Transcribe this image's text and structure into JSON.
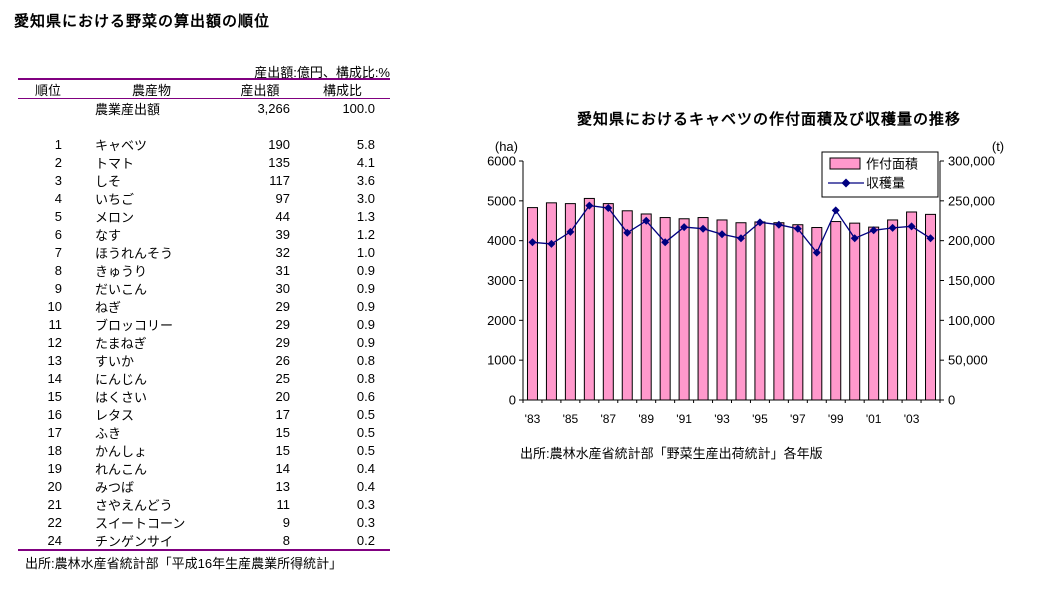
{
  "colors": {
    "rule": "#800080",
    "bar_fill": "#FF99CC",
    "line": "#000080",
    "axis": "#000000"
  },
  "table": {
    "title": "愛知県における野菜の算出額の順位",
    "units_note": "産出額:億円、構成比:%",
    "headers": [
      "順位",
      "農産物",
      "産出額",
      "構成比"
    ],
    "summary": {
      "rank": "",
      "name": "農業産出額",
      "output": "3,266",
      "share": "100.0"
    },
    "rows": [
      [
        "1",
        "キャベツ",
        "190",
        "5.8"
      ],
      [
        "2",
        "トマト",
        "135",
        "4.1"
      ],
      [
        "3",
        "しそ",
        "117",
        "3.6"
      ],
      [
        "4",
        "いちご",
        "97",
        "3.0"
      ],
      [
        "5",
        "メロン",
        "44",
        "1.3"
      ],
      [
        "6",
        "なす",
        "39",
        "1.2"
      ],
      [
        "7",
        "ほうれんそう",
        "32",
        "1.0"
      ],
      [
        "8",
        "きゅうり",
        "31",
        "0.9"
      ],
      [
        "9",
        "だいこん",
        "30",
        "0.9"
      ],
      [
        "10",
        "ねぎ",
        "29",
        "0.9"
      ],
      [
        "11",
        "ブロッコリー",
        "29",
        "0.9"
      ],
      [
        "12",
        "たまねぎ",
        "29",
        "0.9"
      ],
      [
        "13",
        "すいか",
        "26",
        "0.8"
      ],
      [
        "14",
        "にんじん",
        "25",
        "0.8"
      ],
      [
        "15",
        "はくさい",
        "20",
        "0.6"
      ],
      [
        "16",
        "レタス",
        "17",
        "0.5"
      ],
      [
        "17",
        "ふき",
        "15",
        "0.5"
      ],
      [
        "18",
        "かんしょ",
        "15",
        "0.5"
      ],
      [
        "19",
        "れんこん",
        "14",
        "0.4"
      ],
      [
        "20",
        "みつば",
        "13",
        "0.4"
      ],
      [
        "21",
        "さやえんどう",
        "11",
        "0.3"
      ],
      [
        "22",
        "スイートコーン",
        "9",
        "0.3"
      ],
      [
        "24",
        "チンゲンサイ",
        "8",
        "0.2"
      ]
    ],
    "source": "出所:農林水産省統計部「平成16年生産農業所得統計」"
  },
  "chart_data": {
    "type": "bar",
    "title": "愛知県におけるキャベツの作付面積及び収穫量の推移",
    "x": [
      1983,
      1984,
      1985,
      1986,
      1987,
      1988,
      1989,
      1990,
      1991,
      1992,
      1993,
      1994,
      1995,
      1996,
      1997,
      1998,
      1999,
      2000,
      2001,
      2002,
      2003,
      2004
    ],
    "x_tick_labels": [
      "'83",
      "'85",
      "'87",
      "'89",
      "'91",
      "'93",
      "'95",
      "'97",
      "'99",
      "'01",
      "'03"
    ],
    "series": [
      {
        "name": "作付面積",
        "type": "bar",
        "axis": "left",
        "unit": "ha",
        "color": "#FF99CC",
        "values": [
          4830,
          4950,
          4930,
          5060,
          4930,
          4750,
          4670,
          4580,
          4550,
          4580,
          4520,
          4450,
          4470,
          4450,
          4400,
          4330,
          4480,
          4440,
          4340,
          4520,
          4720,
          4660
        ]
      },
      {
        "name": "収穫量",
        "type": "line",
        "axis": "right",
        "unit": "t",
        "color": "#000080",
        "values": [
          198000,
          196000,
          211000,
          244000,
          241000,
          210000,
          225000,
          198000,
          217000,
          215000,
          208000,
          203000,
          223000,
          220000,
          215000,
          185000,
          238000,
          203000,
          213000,
          216000,
          218000,
          203000
        ]
      }
    ],
    "left_axis": {
      "label": "(ha)",
      "min": 0,
      "max": 6000,
      "tick_step": 1000
    },
    "right_axis": {
      "label": "(t)",
      "min": 0,
      "max": 300000,
      "tick_step": 50000
    },
    "legend_position": "top-right",
    "grid": false,
    "source": "出所:農林水産省統計部「野菜生産出荷統計」各年版"
  }
}
